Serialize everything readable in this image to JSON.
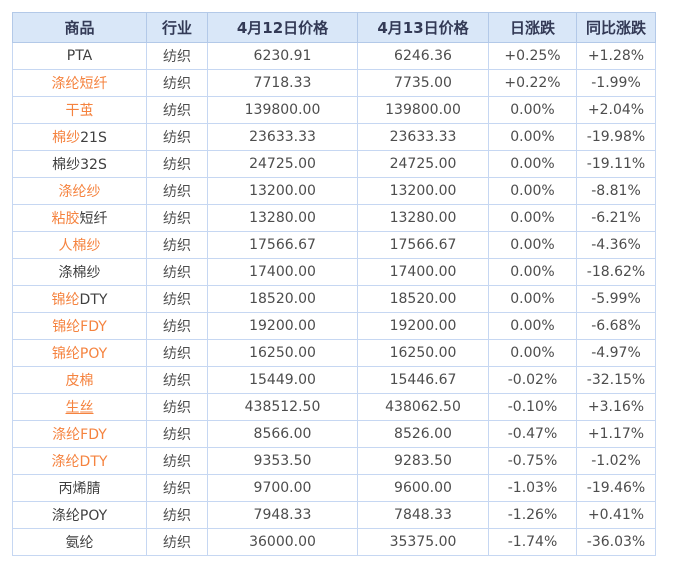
{
  "table": {
    "headers": [
      "商品",
      "行业",
      "4月12日价格",
      "4月13日价格",
      "日涨跌",
      "同比涨跌"
    ],
    "column_keys": [
      "commodity",
      "industry",
      "price-apr12",
      "price-apr13",
      "daily-change",
      "yoy-change"
    ],
    "rows": [
      {
        "name": [
          {
            "text": "PTA",
            "style": "plain"
          }
        ],
        "industry": "纺织",
        "price_apr12": "6230.91",
        "price_apr13": "6246.36",
        "daily_change": {
          "text": "+0.25%",
          "tone": "up"
        },
        "yoy_change": {
          "text": "+1.28%",
          "tone": "up"
        }
      },
      {
        "name": [
          {
            "text": "涤纶短纤",
            "style": "hl"
          }
        ],
        "industry": "纺织",
        "price_apr12": "7718.33",
        "price_apr13": "7735.00",
        "daily_change": {
          "text": "+0.22%",
          "tone": "up"
        },
        "yoy_change": {
          "text": "-1.99%",
          "tone": "down"
        }
      },
      {
        "name": [
          {
            "text": "干茧",
            "style": "hl"
          }
        ],
        "industry": "纺织",
        "price_apr12": "139800.00",
        "price_apr13": "139800.00",
        "daily_change": {
          "text": "0.00%",
          "tone": "flat"
        },
        "yoy_change": {
          "text": "+2.04%",
          "tone": "up"
        }
      },
      {
        "name": [
          {
            "text": "棉纱",
            "style": "hl"
          },
          {
            "text": "21S",
            "style": "plain"
          }
        ],
        "industry": "纺织",
        "price_apr12": "23633.33",
        "price_apr13": "23633.33",
        "daily_change": {
          "text": "0.00%",
          "tone": "flat"
        },
        "yoy_change": {
          "text": "-19.98%",
          "tone": "down"
        }
      },
      {
        "name": [
          {
            "text": "棉纱32S",
            "style": "plain"
          }
        ],
        "industry": "纺织",
        "price_apr12": "24725.00",
        "price_apr13": "24725.00",
        "daily_change": {
          "text": "0.00%",
          "tone": "flat"
        },
        "yoy_change": {
          "text": "-19.11%",
          "tone": "down"
        }
      },
      {
        "name": [
          {
            "text": "涤纶纱",
            "style": "hl"
          }
        ],
        "industry": "纺织",
        "price_apr12": "13200.00",
        "price_apr13": "13200.00",
        "daily_change": {
          "text": "0.00%",
          "tone": "flat"
        },
        "yoy_change": {
          "text": "-8.81%",
          "tone": "down"
        }
      },
      {
        "name": [
          {
            "text": "粘胶",
            "style": "hl"
          },
          {
            "text": "短纤",
            "style": "plain"
          }
        ],
        "industry": "纺织",
        "price_apr12": "13280.00",
        "price_apr13": "13280.00",
        "daily_change": {
          "text": "0.00%",
          "tone": "flat"
        },
        "yoy_change": {
          "text": "-6.21%",
          "tone": "down"
        }
      },
      {
        "name": [
          {
            "text": "人棉纱",
            "style": "hl"
          }
        ],
        "industry": "纺织",
        "price_apr12": "17566.67",
        "price_apr13": "17566.67",
        "daily_change": {
          "text": "0.00%",
          "tone": "flat"
        },
        "yoy_change": {
          "text": "-4.36%",
          "tone": "down"
        }
      },
      {
        "name": [
          {
            "text": "涤棉纱",
            "style": "plain"
          }
        ],
        "industry": "纺织",
        "price_apr12": "17400.00",
        "price_apr13": "17400.00",
        "daily_change": {
          "text": "0.00%",
          "tone": "flat"
        },
        "yoy_change": {
          "text": "-18.62%",
          "tone": "down"
        }
      },
      {
        "name": [
          {
            "text": "锦纶",
            "style": "hl"
          },
          {
            "text": "DTY",
            "style": "plain"
          }
        ],
        "industry": "纺织",
        "price_apr12": "18520.00",
        "price_apr13": "18520.00",
        "daily_change": {
          "text": "0.00%",
          "tone": "flat"
        },
        "yoy_change": {
          "text": "-5.99%",
          "tone": "down"
        }
      },
      {
        "name": [
          {
            "text": "锦纶FDY",
            "style": "hl"
          }
        ],
        "industry": "纺织",
        "price_apr12": "19200.00",
        "price_apr13": "19200.00",
        "daily_change": {
          "text": "0.00%",
          "tone": "flat"
        },
        "yoy_change": {
          "text": "-6.68%",
          "tone": "down"
        }
      },
      {
        "name": [
          {
            "text": "锦纶POY",
            "style": "hl"
          }
        ],
        "industry": "纺织",
        "price_apr12": "16250.00",
        "price_apr13": "16250.00",
        "daily_change": {
          "text": "0.00%",
          "tone": "flat"
        },
        "yoy_change": {
          "text": "-4.97%",
          "tone": "down"
        }
      },
      {
        "name": [
          {
            "text": "皮棉",
            "style": "hl"
          }
        ],
        "industry": "纺织",
        "price_apr12": "15449.00",
        "price_apr13": "15446.67",
        "daily_change": {
          "text": "-0.02%",
          "tone": "down"
        },
        "yoy_change": {
          "text": "-32.15%",
          "tone": "down"
        }
      },
      {
        "name": [
          {
            "text": "生丝",
            "style": "hl-underline"
          }
        ],
        "industry": "纺织",
        "price_apr12": "438512.50",
        "price_apr13": "438062.50",
        "daily_change": {
          "text": "-0.10%",
          "tone": "down"
        },
        "yoy_change": {
          "text": "+3.16%",
          "tone": "up"
        }
      },
      {
        "name": [
          {
            "text": "涤纶FDY",
            "style": "hl"
          }
        ],
        "industry": "纺织",
        "price_apr12": "8566.00",
        "price_apr13": "8526.00",
        "daily_change": {
          "text": "-0.47%",
          "tone": "down"
        },
        "yoy_change": {
          "text": "+1.17%",
          "tone": "up"
        }
      },
      {
        "name": [
          {
            "text": "涤纶DTY",
            "style": "hl"
          }
        ],
        "industry": "纺织",
        "price_apr12": "9353.50",
        "price_apr13": "9283.50",
        "daily_change": {
          "text": "-0.75%",
          "tone": "down"
        },
        "yoy_change": {
          "text": "-1.02%",
          "tone": "down"
        }
      },
      {
        "name": [
          {
            "text": "丙烯腈",
            "style": "plain"
          }
        ],
        "industry": "纺织",
        "price_apr12": "9700.00",
        "price_apr13": "9600.00",
        "daily_change": {
          "text": "-1.03%",
          "tone": "down"
        },
        "yoy_change": {
          "text": "-19.46%",
          "tone": "down"
        }
      },
      {
        "name": [
          {
            "text": "涤纶POY",
            "style": "plain"
          }
        ],
        "industry": "纺织",
        "price_apr12": "7948.33",
        "price_apr13": "7848.33",
        "daily_change": {
          "text": "-1.26%",
          "tone": "down"
        },
        "yoy_change": {
          "text": "+0.41%",
          "tone": "up"
        }
      },
      {
        "name": [
          {
            "text": "氨纶",
            "style": "plain"
          }
        ],
        "industry": "纺织",
        "price_apr12": "36000.00",
        "price_apr13": "35375.00",
        "daily_change": {
          "text": "-1.74%",
          "tone": "down"
        },
        "yoy_change": {
          "text": "-36.03%",
          "tone": "down"
        }
      }
    ]
  },
  "colors": {
    "header_bg": "#d9e7f8",
    "header_text": "#333a56",
    "inner_border": "#c6d7f2",
    "outer_border": "#a5c2e5",
    "plain_text": "#3f3f3f",
    "number_text": "#4d4d4d",
    "highlight_orange": "#f5833f",
    "up_red": "#e60000",
    "down_green": "#009900",
    "flat_gray": "#4d4d4d"
  }
}
